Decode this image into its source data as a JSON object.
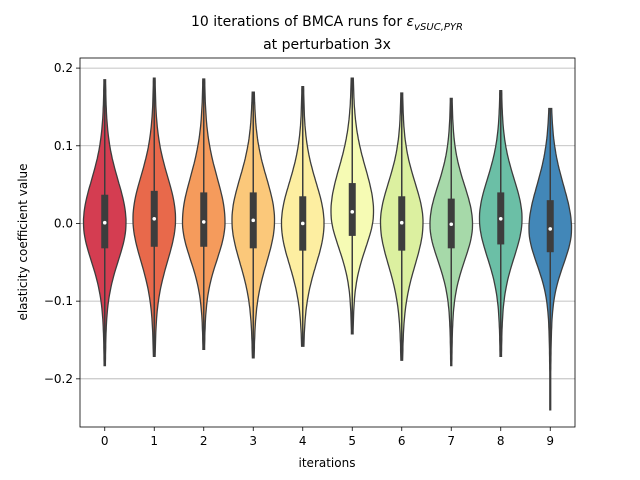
{
  "chart_data": {
    "type": "violin",
    "title_prefix": "10 iterations of BMCA runs for ",
    "title_symbol": "ε",
    "title_subscript": "vSUC,PYR",
    "title_line2": "at perturbation 3x",
    "xlabel": "iterations",
    "ylabel": "elasticity coefficient value",
    "ylim": [
      -0.262,
      0.213
    ],
    "grid": "horizontal",
    "categories": [
      "0",
      "1",
      "2",
      "3",
      "4",
      "5",
      "6",
      "7",
      "8",
      "9"
    ],
    "yticks": [
      -0.2,
      -0.1,
      0.0,
      0.1,
      0.2
    ],
    "ytick_labels": [
      "−0.2",
      "−0.1",
      "0.0",
      "0.1",
      "0.2"
    ],
    "series": [
      {
        "category": "0",
        "min": -0.183,
        "q1": -0.032,
        "median": 0.001,
        "q3": 0.037,
        "max": 0.185,
        "color": "#d43d51"
      },
      {
        "category": "1",
        "min": -0.171,
        "q1": -0.03,
        "median": 0.006,
        "q3": 0.042,
        "max": 0.187,
        "color": "#e8694b"
      },
      {
        "category": "2",
        "min": -0.162,
        "q1": -0.03,
        "median": 0.002,
        "q3": 0.04,
        "max": 0.186,
        "color": "#f59b5c"
      },
      {
        "category": "3",
        "min": -0.173,
        "q1": -0.032,
        "median": 0.004,
        "q3": 0.04,
        "max": 0.169,
        "color": "#fbc87a"
      },
      {
        "category": "4",
        "min": -0.158,
        "q1": -0.035,
        "median": 0.0,
        "q3": 0.035,
        "max": 0.176,
        "color": "#fdeea1"
      },
      {
        "category": "5",
        "min": -0.142,
        "q1": -0.016,
        "median": 0.015,
        "q3": 0.052,
        "max": 0.187,
        "color": "#f6fbb4"
      },
      {
        "category": "6",
        "min": -0.176,
        "q1": -0.035,
        "median": 0.001,
        "q3": 0.035,
        "max": 0.168,
        "color": "#dcf0a0"
      },
      {
        "category": "7",
        "min": -0.183,
        "q1": -0.032,
        "median": -0.001,
        "q3": 0.032,
        "max": 0.161,
        "color": "#a6d9a9"
      },
      {
        "category": "8",
        "min": -0.171,
        "q1": -0.027,
        "median": 0.006,
        "q3": 0.04,
        "max": 0.171,
        "color": "#6bbfa6"
      },
      {
        "category": "9",
        "min": -0.24,
        "q1": -0.037,
        "median": -0.007,
        "q3": 0.03,
        "max": 0.148,
        "color": "#4287b8"
      }
    ]
  }
}
